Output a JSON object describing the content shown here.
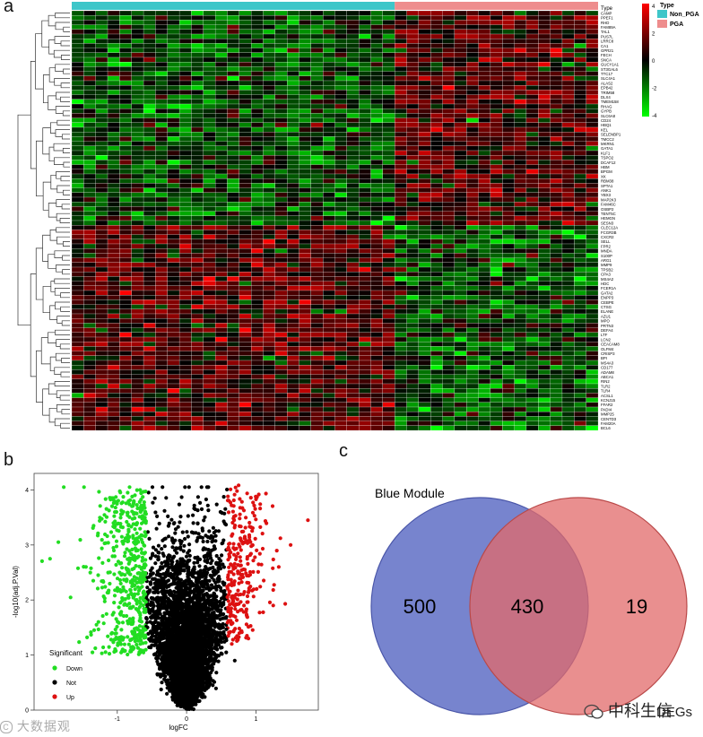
{
  "panels": {
    "a": "a",
    "b": "b",
    "c": "c"
  },
  "heatmap": {
    "type_label": "Type",
    "legend_title": "Type",
    "groups": [
      {
        "name": "Non_PGA",
        "color": "#3ec6c9",
        "columns": 27
      },
      {
        "name": "PGA",
        "color": "#ee8d8d",
        "columns": 17
      }
    ],
    "color_scale": {
      "ticks": [
        "4",
        "2",
        "0",
        "-2",
        "-4"
      ],
      "high_color": "#ff0000",
      "mid_color": "#000000",
      "low_color": "#00ff00"
    },
    "rows_upper": 46,
    "rows_lower": 44,
    "genes": [
      "CAMP",
      "PPEF1",
      "RHD",
      "FAM89A",
      "TAL1",
      "PUS7L",
      "LRRC8",
      "CA1",
      "GPR21",
      "FECH",
      "SNCA",
      "GUCY1A1",
      "ST3GAL6",
      "TTC17",
      "SLC4A1",
      "ALAS2",
      "EPB42",
      "TRIM58",
      "DLX4",
      "TMEM158",
      "RHAG",
      "GYPB",
      "SLC6A8",
      "CD24",
      "HBQ1",
      "KEL",
      "SELENBP1",
      "TMCC2",
      "MKRN1",
      "GATA1",
      "KLF1",
      "TSPO2",
      "DCAF12",
      "HBM",
      "BPGM",
      "XK",
      "RBM38",
      "SPTA1",
      "ANK1",
      "YBX3",
      "MAP2K3",
      "FAM46C",
      "OSBP2",
      "TENT5C",
      "HEMGN",
      "SESN3",
      "CLEC12A",
      "FCGR3B",
      "CXCR2",
      "SELL",
      "FPR2",
      "MNDA",
      "S100P",
      "ARG1",
      "MMP9",
      "TPSB2",
      "CPA3",
      "MS4A2",
      "HDC",
      "FCER1A",
      "GATA2",
      "ENPP3",
      "CEBPE",
      "CTSG",
      "ELANE",
      "AZU1",
      "MPO",
      "PRTN3",
      "DEFA4",
      "LTF",
      "LCN2",
      "CEACAM8",
      "OLFM4",
      "CRISP3",
      "BPI",
      "MS4A3",
      "CD177",
      "ADAM8",
      "ABCA1",
      "RIN2",
      "TLR2",
      "TLR4",
      "ACSL1",
      "KCNJ15",
      "FFAR2",
      "PADI4",
      "MMP25",
      "CENTD3",
      "FAM20A",
      "BCL6"
    ]
  },
  "volcano": {
    "title": "",
    "xlabel": "logFC",
    "ylabel": "-log10(adj.P.Val)",
    "x_ticks": [
      "-1",
      "0",
      "1"
    ],
    "y_ticks": [
      "0",
      "1",
      "2",
      "3",
      "4"
    ],
    "legend_title": "Significant",
    "legend": [
      {
        "label": "Down",
        "color": "#22dd22"
      },
      {
        "label": "Not",
        "color": "#000000"
      },
      {
        "label": "Up",
        "color": "#dd1111"
      }
    ]
  },
  "chart_data": {
    "type": "scatter",
    "title": "",
    "xlabel": "logFC",
    "ylabel": "-log10(adj.P.Val)",
    "xlim": [
      -2.2,
      1.9
    ],
    "ylim": [
      0,
      4.3
    ],
    "logfc_threshold": 0.585,
    "series": [
      {
        "name": "Down",
        "color": "#22dd22"
      },
      {
        "name": "Not",
        "color": "#000000"
      },
      {
        "name": "Up",
        "color": "#dd1111"
      }
    ],
    "outliers": [
      {
        "x": -1.85,
        "y": 3.05
      },
      {
        "x": -1.97,
        "y": 2.75
      },
      {
        "x": -1.48,
        "y": 4.05
      },
      {
        "x": 1.75,
        "y": 3.45
      },
      {
        "x": 1.5,
        "y": 3.0
      },
      {
        "x": -1.3,
        "y": 1.55
      },
      {
        "x": 1.25,
        "y": 1.9
      }
    ]
  },
  "venn": {
    "title": "Blue Module",
    "left_only": "500",
    "intersection": "430",
    "right_only": "19",
    "left_color": "#5f6fc6",
    "right_color": "#e16a6a",
    "right_label_tail": "DEGs"
  },
  "watermarks": {
    "bottom_left": "大数据观",
    "brand": "中科生信"
  }
}
